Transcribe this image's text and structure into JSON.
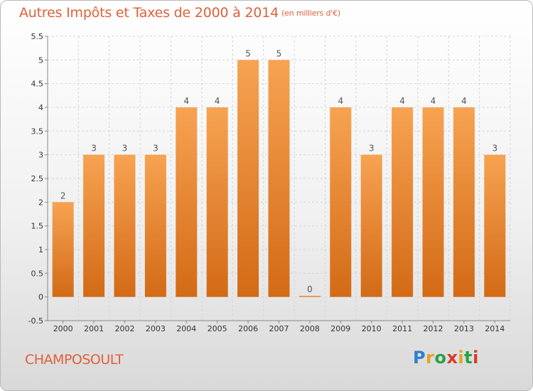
{
  "title": "Autres Impôts et Taxes de 2000 à 2014",
  "title_unit": "(en milliers d'€)",
  "commune": "CHAMPOSOULT",
  "logo": {
    "letters": [
      "P",
      "r",
      "o",
      "x",
      "i",
      "t",
      "i"
    ],
    "colors": [
      "#2f7fd0",
      "#e8a020",
      "#2aa048",
      "#d83a2a",
      "#e8a020",
      "#2aa048",
      "#d83a2a"
    ]
  },
  "chart_data": {
    "type": "bar",
    "title": "Autres Impôts et Taxes de 2000 à 2014",
    "ylabel": "",
    "xlabel": "",
    "categories": [
      "2000",
      "2001",
      "2002",
      "2003",
      "2004",
      "2005",
      "2006",
      "2007",
      "2008",
      "2009",
      "2010",
      "2011",
      "2012",
      "2013",
      "2014"
    ],
    "values": [
      2,
      3,
      3,
      3,
      4,
      4,
      5,
      5,
      0,
      4,
      3,
      4,
      4,
      4,
      3
    ],
    "ylim": [
      -0.5,
      5.5
    ],
    "yticks": [
      "-0.5",
      "0",
      "0.5",
      "1",
      "1.5",
      "2",
      "2.5",
      "3",
      "3.5",
      "4",
      "4.5",
      "5",
      "5.5"
    ],
    "grid": true,
    "bar_color": "#f0903a"
  }
}
